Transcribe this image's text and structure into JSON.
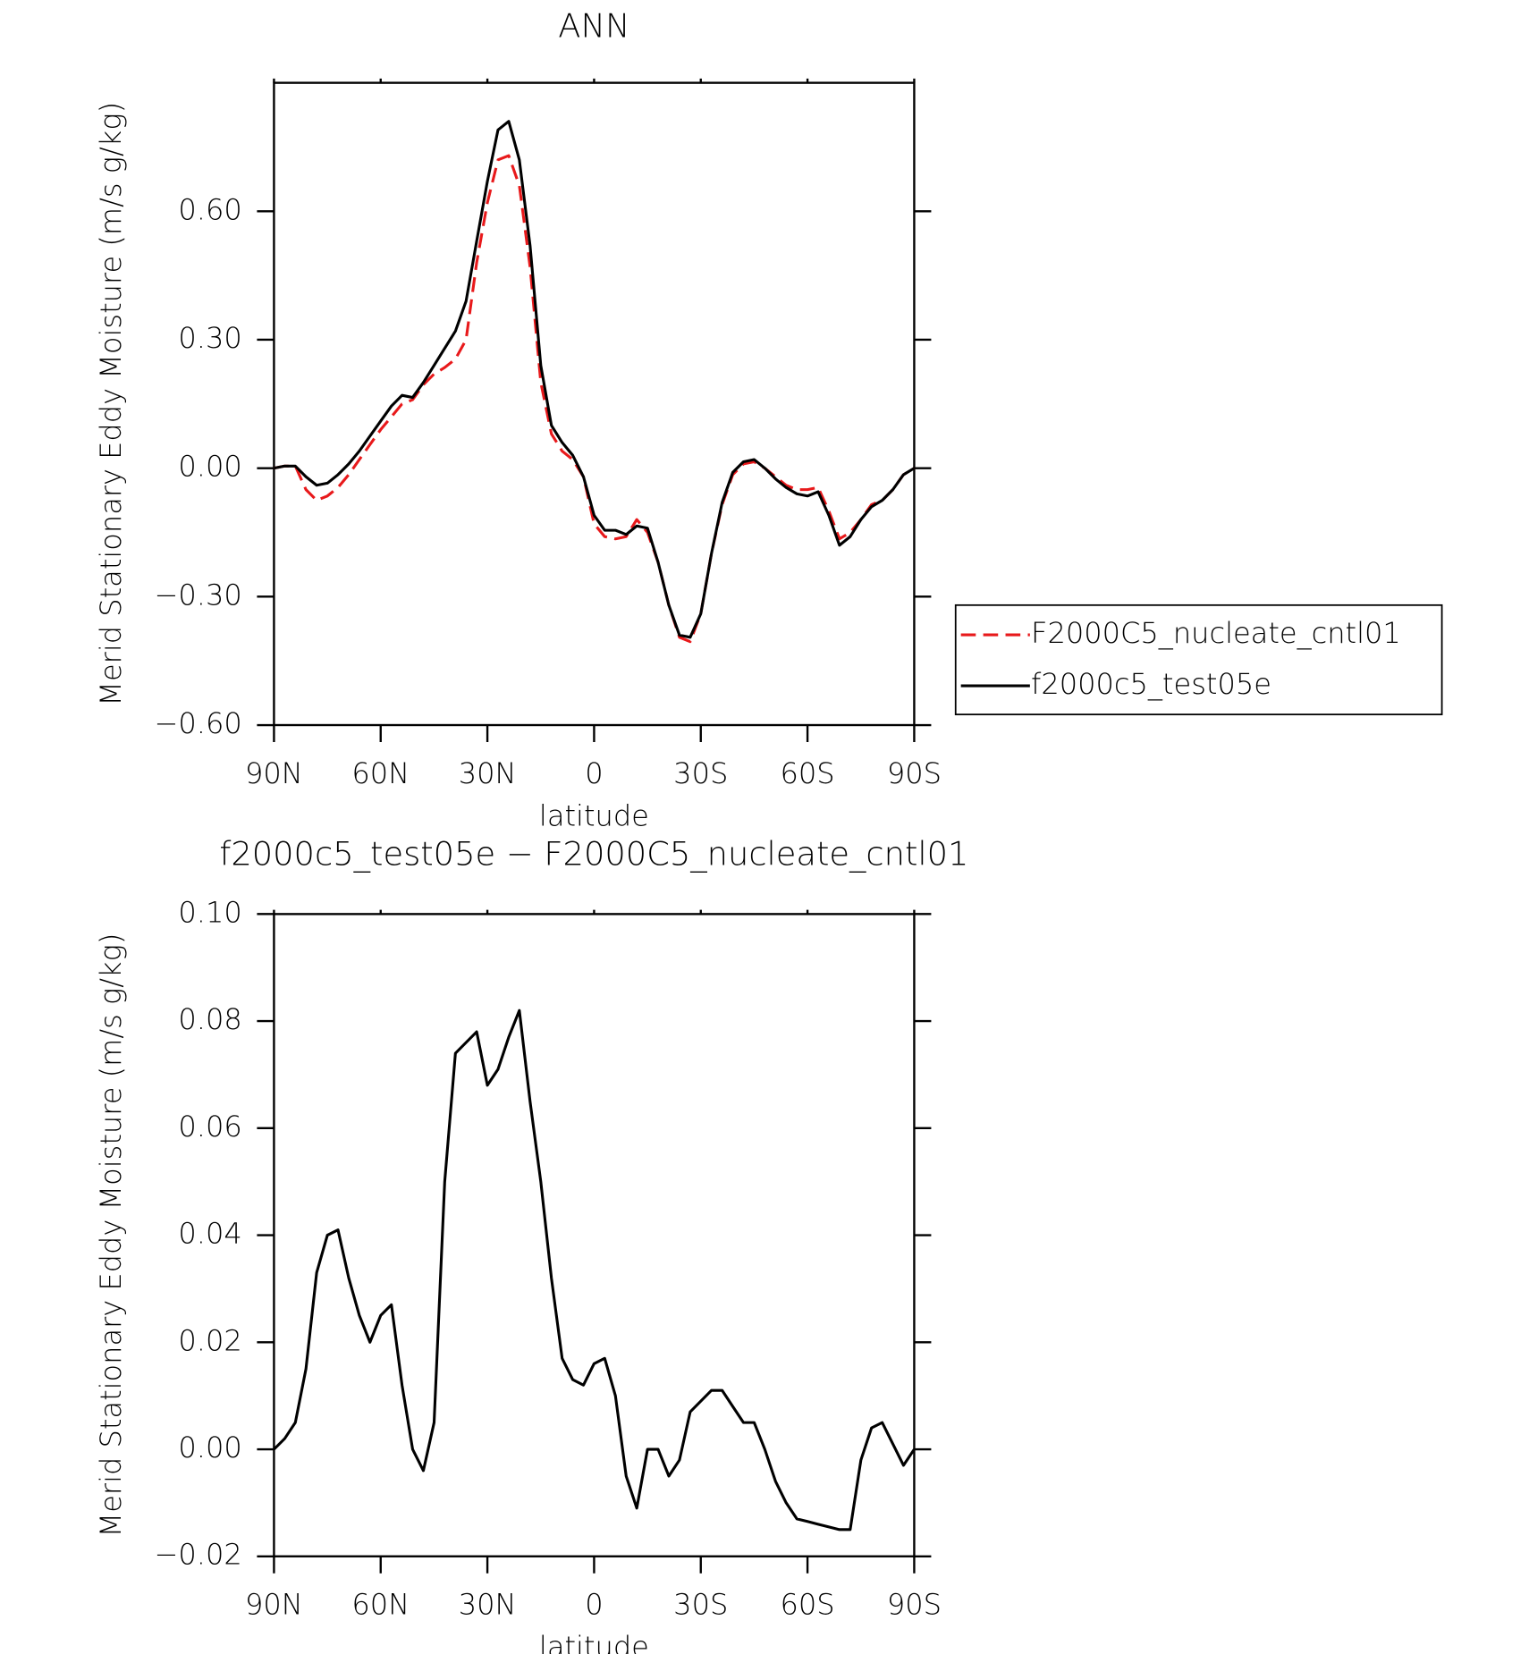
{
  "chart_data": [
    {
      "type": "line",
      "title": "ANN",
      "x_label": "latitude",
      "y_label": "Merid Stationary Eddy Moisture (m/s g/kg)",
      "x": [
        90,
        87,
        84,
        81,
        78,
        75,
        72,
        69,
        66,
        63,
        60,
        57,
        54,
        51,
        48,
        45,
        42,
        39,
        36,
        33,
        30,
        27,
        24,
        21,
        18,
        15,
        12,
        9,
        6,
        3,
        0,
        -3,
        -6,
        -9,
        -12,
        -15,
        -18,
        -21,
        -24,
        -27,
        -30,
        -33,
        -36,
        -39,
        -42,
        -45,
        -48,
        -51,
        -54,
        -57,
        -60,
        -63,
        -66,
        -69,
        -72,
        -75,
        -78,
        -81,
        -84,
        -87,
        -90
      ],
      "series": [
        {
          "name": "F2000C5_nucleate_cntl01",
          "color": "#e8191b",
          "line_style": "dashed",
          "values": [
            0,
            0.005,
            0.005,
            -0.05,
            -0.075,
            -0.065,
            -0.045,
            -0.015,
            0.02,
            0.055,
            0.09,
            0.12,
            0.15,
            0.16,
            0.195,
            0.22,
            0.235,
            0.255,
            0.3,
            0.48,
            0.62,
            0.72,
            0.73,
            0.66,
            0.47,
            0.2,
            0.08,
            0.04,
            0.02,
            -0.02,
            -0.13,
            -0.16,
            -0.165,
            -0.16,
            -0.12,
            -0.15,
            -0.22,
            -0.32,
            -0.395,
            -0.405,
            -0.34,
            -0.2,
            -0.085,
            -0.015,
            0.01,
            0.015,
            0,
            -0.02,
            -0.04,
            -0.05,
            -0.05,
            -0.045,
            -0.1,
            -0.165,
            -0.15,
            -0.12,
            -0.085,
            -0.075,
            -0.05,
            -0.015,
            0
          ]
        },
        {
          "name": "f2000c5_test05e",
          "color": "#000000",
          "line_style": "solid",
          "values": [
            0,
            0.005,
            0.005,
            -0.02,
            -0.04,
            -0.035,
            -0.015,
            0.01,
            0.04,
            0.075,
            0.11,
            0.145,
            0.17,
            0.165,
            0.2,
            0.24,
            0.28,
            0.32,
            0.39,
            0.53,
            0.67,
            0.79,
            0.81,
            0.72,
            0.52,
            0.24,
            0.1,
            0.06,
            0.03,
            -0.02,
            -0.11,
            -0.145,
            -0.145,
            -0.155,
            -0.135,
            -0.14,
            -0.22,
            -0.32,
            -0.39,
            -0.395,
            -0.34,
            -0.2,
            -0.08,
            -0.01,
            0.015,
            0.02,
            0,
            -0.025,
            -0.045,
            -0.06,
            -0.065,
            -0.055,
            -0.11,
            -0.18,
            -0.16,
            -0.12,
            -0.09,
            -0.075,
            -0.05,
            -0.015,
            0
          ]
        }
      ],
      "xlim": [
        90,
        -90
      ],
      "xticks": [
        {
          "value": 90,
          "label": "90N"
        },
        {
          "value": 60,
          "label": "60N"
        },
        {
          "value": 30,
          "label": "30N"
        },
        0,
        {
          "value": -30,
          "label": "30S"
        },
        {
          "value": -60,
          "label": "60S"
        },
        {
          "value": -90,
          "label": "90S"
        }
      ],
      "ylim": [
        -0.6,
        0.9
      ],
      "yticks": [
        {
          "value": -0.6,
          "label": "−0.60"
        },
        {
          "value": -0.3,
          "label": "−0.30"
        },
        {
          "value": 0,
          "label": "0.00"
        },
        {
          "value": 0.3,
          "label": "0.30"
        },
        {
          "value": 0.6,
          "label": "0.60"
        }
      ],
      "legend": "right"
    },
    {
      "type": "line",
      "title": "f2000c5_test05e − F2000C5_nucleate_cntl01",
      "x_label": "latitude",
      "y_label": "Merid Stationary Eddy Moisture (m/s g/kg)",
      "x": [
        90,
        87,
        84,
        81,
        78,
        75,
        72,
        69,
        66,
        63,
        60,
        57,
        54,
        51,
        48,
        45,
        42,
        39,
        36,
        33,
        30,
        27,
        24,
        21,
        18,
        15,
        12,
        9,
        6,
        3,
        0,
        -3,
        -6,
        -9,
        -12,
        -15,
        -18,
        -21,
        -24,
        -27,
        -30,
        -33,
        -36,
        -39,
        -42,
        -45,
        -48,
        -51,
        -54,
        -57,
        -60,
        -63,
        -66,
        -69,
        -72,
        -75,
        -78,
        -81,
        -84,
        -87,
        -90
      ],
      "values": [
        0,
        0.002,
        0.005,
        0.015,
        0.033,
        0.04,
        0.041,
        0.032,
        0.025,
        0.02,
        0.025,
        0.027,
        0.012,
        0,
        -0.004,
        0.005,
        0.05,
        0.074,
        0.076,
        0.078,
        0.068,
        0.071,
        0.077,
        0.082,
        0.065,
        0.05,
        0.032,
        0.017,
        0.013,
        0.012,
        0.016,
        0.017,
        0.01,
        -0.005,
        -0.011,
        0,
        0,
        -0.005,
        -0.002,
        0.007,
        0.009,
        0.011,
        0.011,
        0.008,
        0.005,
        0.005,
        0,
        -0.006,
        -0.01,
        -0.013,
        -0.0135,
        -0.014,
        -0.0145,
        -0.015,
        -0.015,
        -0.002,
        0.004,
        0.005,
        0.001,
        -0.003,
        0
      ],
      "color": "#000000",
      "xlim": [
        90,
        -90
      ],
      "xticks": [
        {
          "value": 90,
          "label": "90N"
        },
        {
          "value": 60,
          "label": "60N"
        },
        {
          "value": 30,
          "label": "30N"
        },
        0,
        {
          "value": -30,
          "label": "30S"
        },
        {
          "value": -60,
          "label": "60S"
        },
        {
          "value": -90,
          "label": "90S"
        }
      ],
      "ylim": [
        -0.02,
        0.1
      ],
      "yticks": [
        {
          "value": -0.02,
          "label": "−0.02"
        },
        {
          "value": 0,
          "label": "0.00"
        },
        {
          "value": 0.02,
          "label": "0.02"
        },
        {
          "value": 0.04,
          "label": "0.04"
        },
        {
          "value": 0.06,
          "label": "0.06"
        },
        {
          "value": 0.08,
          "label": "0.08"
        },
        {
          "value": 0.1,
          "label": "0.10"
        }
      ]
    }
  ]
}
